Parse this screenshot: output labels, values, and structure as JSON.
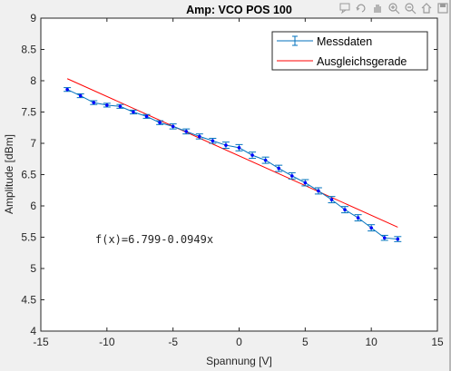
{
  "toolbar": {
    "icons": [
      "data-tips-icon",
      "rotate-3d-icon",
      "pan-icon",
      "zoom-in-icon",
      "zoom-out-icon",
      "restore-view-icon",
      "save-icon"
    ]
  },
  "chart_data": {
    "type": "line",
    "title": "Amp: VCO POS 100",
    "xlabel": "Spannung [V]",
    "ylabel": "Amplitude [dBm]",
    "xlim": [
      -15,
      15
    ],
    "ylim": [
      4,
      9
    ],
    "xticks": [
      -15,
      -10,
      -5,
      0,
      5,
      10,
      15
    ],
    "yticks": [
      4,
      4.5,
      5,
      5.5,
      6,
      6.5,
      7,
      7.5,
      8,
      8.5,
      9
    ],
    "xtick_labels": [
      "-15",
      "-10",
      "-5",
      "0",
      "5",
      "10",
      "15"
    ],
    "ytick_labels": [
      "4",
      "4.5",
      "5",
      "5.5",
      "6",
      "6.5",
      "7",
      "7.5",
      "8",
      "8.5",
      "9"
    ],
    "grid": false,
    "legend_position": "top-right",
    "annotation": "f(x)=6.799-0.0949x",
    "series": [
      {
        "name": "Messdaten",
        "style": "errorbar",
        "color": "#0072bd",
        "marker_color": "#0000ff",
        "x": [
          -13,
          -12,
          -11,
          -10,
          -9,
          -8,
          -7,
          -6,
          -5,
          -4,
          -3,
          -2,
          -1,
          0,
          1,
          2,
          3,
          4,
          5,
          6,
          7,
          8,
          9,
          10,
          11,
          12
        ],
        "y": [
          7.86,
          7.76,
          7.65,
          7.61,
          7.59,
          7.5,
          7.43,
          7.33,
          7.27,
          7.19,
          7.11,
          7.04,
          6.97,
          6.93,
          6.81,
          6.73,
          6.6,
          6.48,
          6.37,
          6.24,
          6.1,
          5.94,
          5.81,
          5.65,
          5.49,
          5.47
        ],
        "err": [
          0.03,
          0.03,
          0.03,
          0.03,
          0.03,
          0.03,
          0.03,
          0.03,
          0.04,
          0.04,
          0.04,
          0.04,
          0.05,
          0.05,
          0.05,
          0.05,
          0.05,
          0.05,
          0.05,
          0.05,
          0.05,
          0.05,
          0.05,
          0.05,
          0.04,
          0.04
        ]
      },
      {
        "name": "Ausgleichsgerade",
        "style": "line",
        "color": "#ff0000",
        "x": [
          -13,
          12
        ],
        "y": [
          8.0327,
          5.6602
        ]
      }
    ]
  }
}
